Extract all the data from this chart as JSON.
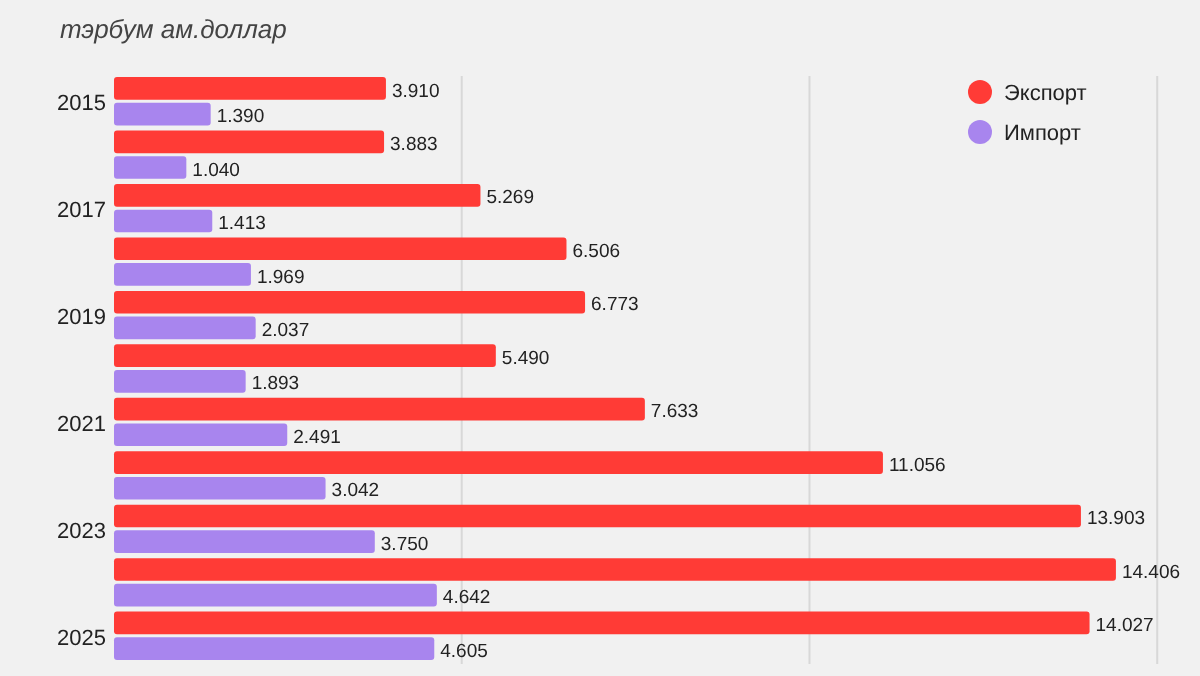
{
  "chart_data": {
    "type": "bar",
    "orientation": "horizontal",
    "subtitle": "тэрбум ам.доллар",
    "categories": [
      "2015",
      null,
      "2017",
      null,
      "2019",
      null,
      "2021",
      null,
      "2023",
      null,
      "2025"
    ],
    "series": [
      {
        "name": "Экспорт",
        "color": "#ff3b36",
        "values": [
          3.91,
          3.883,
          5.269,
          6.506,
          6.773,
          5.49,
          7.633,
          11.056,
          13.903,
          14.406,
          14.027
        ],
        "value_labels": [
          "3.910",
          "3.883",
          "5.269",
          "6.506",
          "6.773",
          "5.490",
          "7.633",
          "11.056",
          "13.903",
          "14.406",
          "14.027"
        ]
      },
      {
        "name": "Импорт",
        "color": "#a885ee",
        "values": [
          1.39,
          1.04,
          1.413,
          1.969,
          2.037,
          1.893,
          2.491,
          3.042,
          3.75,
          4.642,
          4.605
        ],
        "value_labels": [
          "1.390",
          "1.040",
          "1.413",
          "1.969",
          "2.037",
          "1.893",
          "2.491",
          "3.042",
          "3.750",
          "4.642",
          "4.605"
        ]
      }
    ],
    "xlim": [
      0,
      15.5
    ],
    "xticks": [
      {
        "value": 5,
        "label": null
      },
      {
        "value": 10,
        "label": null
      },
      {
        "value": 15,
        "label": null
      }
    ],
    "grid": "x",
    "tick_labels": "y",
    "legend": "top right"
  }
}
